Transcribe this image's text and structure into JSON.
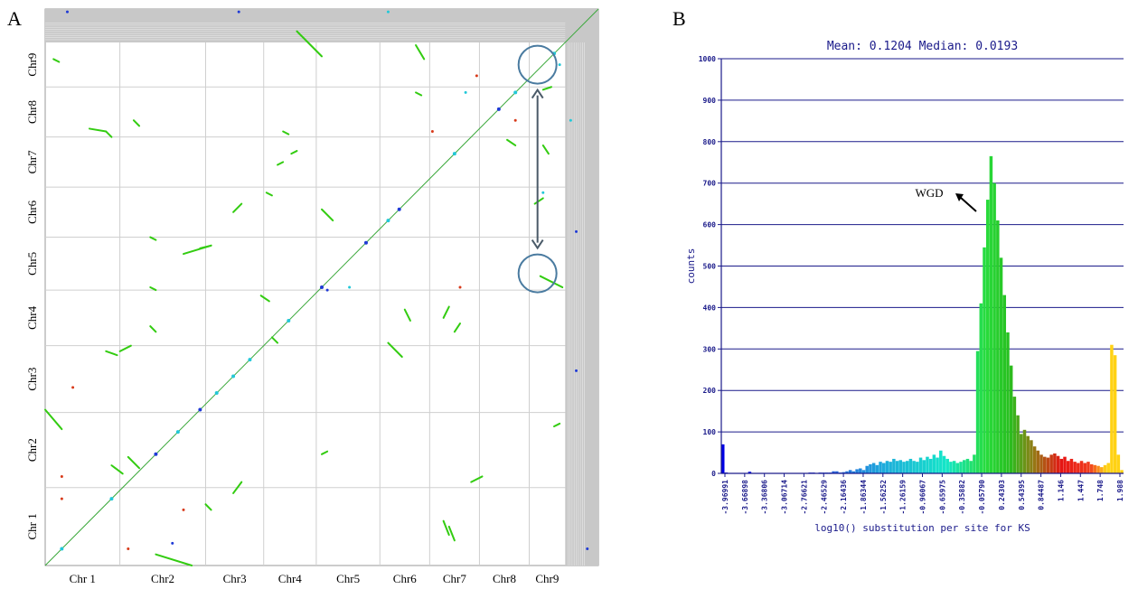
{
  "panels": {
    "a_label": "A",
    "b_label": "B"
  },
  "chart_data": [
    {
      "type": "scatter",
      "chromosomes": [
        "Chr 1",
        "Chr2",
        "Chr3",
        "Chr4",
        "Chr5",
        "Chr6",
        "Chr7",
        "Chr8",
        "Chr9"
      ],
      "x_labels": [
        "Chr 1",
        "Chr2",
        "Chr3",
        "Chr4",
        "Chr5",
        "Chr6",
        "Chr7",
        "Chr8",
        "Chr9"
      ],
      "y_labels": [
        "Chr 1",
        "Chr2",
        "Chr3",
        "Chr4",
        "Chr5",
        "Chr6",
        "Chr7",
        "Chr8",
        "Chr9"
      ],
      "annotations": [
        "circled duplicated block pair (Chr9 vs Chr9 / Chr5) linked by double-headed arrow"
      ],
      "grid": true,
      "colors": {
        "diagonal": "#22bb22",
        "block": "#33cc11",
        "blue": "#1f3ad6",
        "cyan": "#22c8d8",
        "red": "#d83a1a",
        "circle": "#4a7ba0"
      }
    },
    {
      "type": "bar",
      "title": "Mean: 0.1204 Median: 0.0193",
      "xlabel": "log10() substitution per site for KS",
      "ylabel": "counts",
      "ylim": [
        0,
        1000
      ],
      "yticks": [
        "0",
        "100",
        "200",
        "300",
        "400",
        "500",
        "600",
        "700",
        "800",
        "900",
        "1000"
      ],
      "xtick_labels": [
        "-3.96991",
        "-3.66898",
        "-3.36806",
        "-3.06714",
        "-2.76621",
        "-2.46529",
        "-2.16436",
        "-1.86344",
        "-1.56252",
        "-1.26159",
        "-0.96067",
        "-0.65975",
        "-0.35882",
        "-0.05790",
        "0.24303",
        "0.54395",
        "0.84487",
        "1.146",
        "1.447",
        "1.748",
        "1.988"
      ],
      "xlim": [
        -3.96991,
        1.988
      ],
      "grid": true,
      "annotation": "WGD",
      "values": [
        70,
        2,
        0,
        0,
        0,
        0,
        0,
        0,
        4,
        0,
        0,
        0,
        0,
        0,
        0,
        0,
        0,
        0,
        0,
        0,
        0,
        0,
        0,
        0,
        0,
        0,
        2,
        2,
        0,
        2,
        2,
        2,
        2,
        5,
        5,
        2,
        3,
        5,
        8,
        5,
        10,
        12,
        8,
        18,
        22,
        25,
        20,
        28,
        25,
        30,
        28,
        35,
        30,
        32,
        28,
        30,
        35,
        30,
        28,
        38,
        32,
        40,
        35,
        45,
        38,
        55,
        42,
        35,
        28,
        30,
        25,
        28,
        32,
        35,
        30,
        45,
        295,
        410,
        545,
        660,
        765,
        700,
        610,
        520,
        430,
        340,
        260,
        185,
        140,
        95,
        105,
        90,
        80,
        65,
        55,
        45,
        40,
        38,
        45,
        48,
        42,
        35,
        40,
        30,
        35,
        28,
        25,
        30,
        25,
        28,
        22,
        20,
        18,
        15,
        20,
        25,
        310,
        285,
        45,
        8
      ]
    }
  ]
}
